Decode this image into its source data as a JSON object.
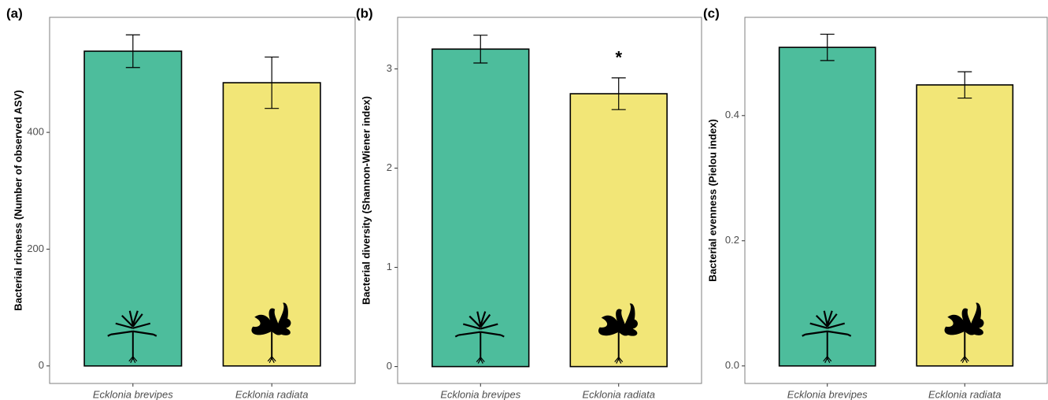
{
  "chart_data": [
    {
      "type": "bar",
      "panel_label": "(a)",
      "y_label": "Bacterial richness (Number of observed ASV)",
      "categories": [
        "Ecklonia brevipes",
        "Ecklonia radiata"
      ],
      "values": [
        539,
        485
      ],
      "errors": [
        28,
        44
      ],
      "colors": [
        "#4dbd9c",
        "#f2e677"
      ],
      "ylim": [
        -30,
        597
      ],
      "yticks": [
        0,
        200,
        400
      ]
    },
    {
      "type": "bar",
      "panel_label": "(b)",
      "y_label": "Bacterial diversity (Shannon-Wiener index)",
      "categories": [
        "Ecklonia brevipes",
        "Ecklonia radiata"
      ],
      "values": [
        3.2,
        2.75
      ],
      "errors": [
        0.14,
        0.16
      ],
      "colors": [
        "#4dbd9c",
        "#f2e677"
      ],
      "ylim": [
        -0.17,
        3.52
      ],
      "yticks": [
        0,
        1,
        2,
        3
      ],
      "annotations": [
        "*"
      ]
    },
    {
      "type": "bar",
      "panel_label": "(c)",
      "y_label": "Bacterial evenness (Pielou index)",
      "categories": [
        "Ecklonia brevipes",
        "Ecklonia radiata"
      ],
      "values": [
        0.509,
        0.449
      ],
      "errors": [
        0.021,
        0.021
      ],
      "colors": [
        "#4dbd9c",
        "#f2e677"
      ],
      "ylim": [
        -0.028,
        0.557
      ],
      "yticks": [
        {
          "value": 0,
          "label": "0.0"
        },
        {
          "value": 0.2,
          "label": "0.2"
        },
        {
          "value": 0.4,
          "label": "0.4"
        }
      ]
    }
  ]
}
